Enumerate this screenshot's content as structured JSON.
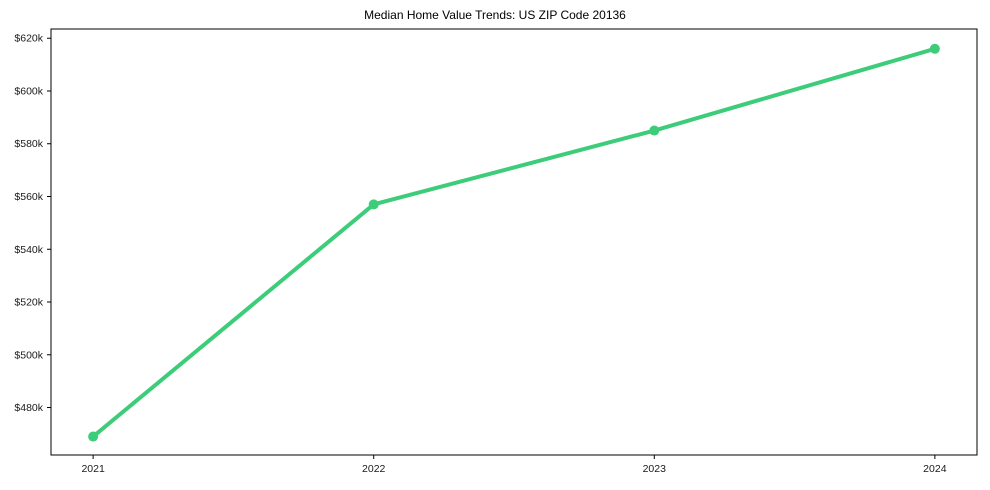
{
  "chart_data": {
    "type": "line",
    "title": "Median Home Value Trends: US ZIP Code 20136",
    "categories": [
      "2021",
      "2022",
      "2023",
      "2024"
    ],
    "series": [
      {
        "name": "Median Home Value",
        "values": [
          469000,
          557000,
          585000,
          616000
        ]
      }
    ],
    "xlabel": "",
    "ylabel": "",
    "ylim": [
      462000,
      623500
    ],
    "y_ticks": [
      480000,
      500000,
      520000,
      540000,
      560000,
      580000,
      600000,
      620000
    ],
    "y_tick_labels": [
      "$480k",
      "$500k",
      "$520k",
      "$540k",
      "$560k",
      "$580k",
      "$600k",
      "$620k"
    ],
    "grid": false,
    "legend_position": "none",
    "line_color": "#3dcd7a",
    "marker": "circle",
    "spine_color": "#000000",
    "tick_label_color": "#1a1a1a",
    "background_color": "#ffffff"
  }
}
